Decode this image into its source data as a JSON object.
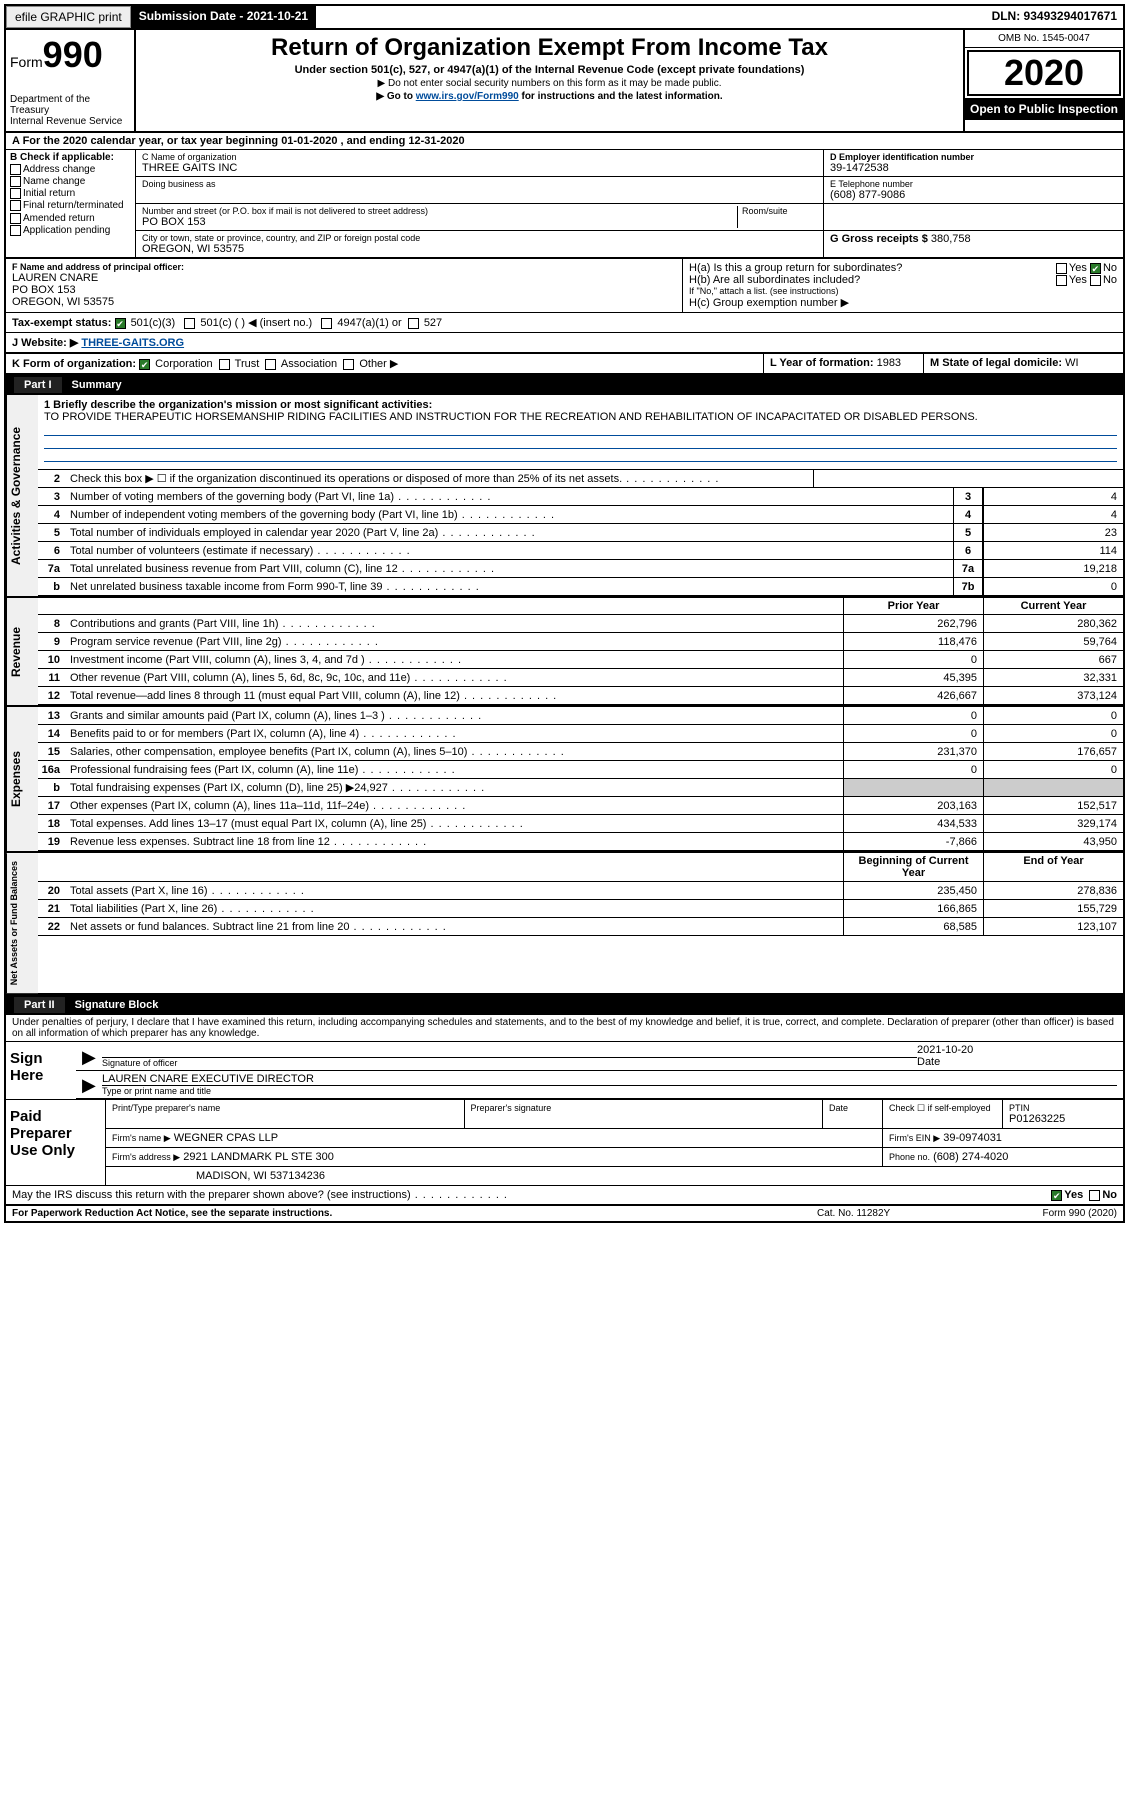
{
  "topbar": {
    "efile": "efile GRAPHIC print",
    "subdate_label": "Submission Date - 2021-10-21",
    "dln": "DLN: 93493294017671"
  },
  "header": {
    "form_word": "Form",
    "form_num": "990",
    "dept": "Department of the Treasury\nInternal Revenue Service",
    "title": "Return of Organization Exempt From Income Tax",
    "subtitle": "Under section 501(c), 527, or 4947(a)(1) of the Internal Revenue Code (except private foundations)",
    "note1": "▶ Do not enter social security numbers on this form as it may be made public.",
    "note2_pre": "▶ Go to ",
    "note2_link": "www.irs.gov/Form990",
    "note2_post": " for instructions and the latest information.",
    "omb": "OMB No. 1545-0047",
    "year": "2020",
    "inspect": "Open to Public Inspection"
  },
  "lineA": "A   For the 2020 calendar year, or tax year beginning 01-01-2020    , and ending 12-31-2020",
  "colB": {
    "label": "B Check if applicable:",
    "opts": [
      "Address change",
      "Name change",
      "Initial return",
      "Final return/terminated",
      "Amended return",
      "Application pending"
    ]
  },
  "C": {
    "name_label": "C Name of organization",
    "name": "THREE GAITS INC",
    "dba": "Doing business as",
    "addr_label": "Number and street (or P.O. box if mail is not delivered to street address)",
    "room_label": "Room/suite",
    "addr": "PO BOX 153",
    "city_label": "City or town, state or province, country, and ZIP or foreign postal code",
    "city": "OREGON, WI  53575"
  },
  "D": {
    "label": "D Employer identification number",
    "val": "39-1472538"
  },
  "E": {
    "label": "E Telephone number",
    "val": "(608) 877-9086"
  },
  "G": {
    "label": "G Gross receipts $",
    "val": "380,758"
  },
  "F": {
    "label": "F  Name and address of principal officer:",
    "name": "LAUREN CNARE",
    "addr1": "PO BOX 153",
    "addr2": "OREGON, WI  53575"
  },
  "H": {
    "a": "H(a)  Is this a group return for subordinates?",
    "b": "H(b)  Are all subordinates included?",
    "b_note": "If \"No,\" attach a list. (see instructions)",
    "c": "H(c)  Group exemption number ▶",
    "yes": "Yes",
    "no": "No"
  },
  "I": {
    "label": "Tax-exempt status:",
    "opts": [
      "501(c)(3)",
      "501(c) (  ) ◀ (insert no.)",
      "4947(a)(1) or",
      "527"
    ]
  },
  "J": {
    "label": "J    Website: ▶",
    "val": "THREE-GAITS.ORG"
  },
  "K": {
    "label": "K Form of organization:",
    "opts": [
      "Corporation",
      "Trust",
      "Association",
      "Other ▶"
    ]
  },
  "L": {
    "label": "L Year of formation:",
    "val": "1983"
  },
  "M": {
    "label": "M State of legal domicile:",
    "val": "WI"
  },
  "part1": {
    "num": "Part I",
    "title": "Summary"
  },
  "mission": {
    "label": "1  Briefly describe the organization's mission or most significant activities:",
    "text": "TO PROVIDE THERAPEUTIC HORSEMANSHIP RIDING FACILITIES AND INSTRUCTION FOR THE RECREATION AND REHABILITATION OF INCAPACITATED OR DISABLED PERSONS."
  },
  "gov_lines": [
    {
      "n": "2",
      "d": "Check this box ▶ ☐ if the organization discontinued its operations or disposed of more than 25% of its net assets.",
      "box": "",
      "v": ""
    },
    {
      "n": "3",
      "d": "Number of voting members of the governing body (Part VI, line 1a)",
      "box": "3",
      "v": "4"
    },
    {
      "n": "4",
      "d": "Number of independent voting members of the governing body (Part VI, line 1b)",
      "box": "4",
      "v": "4"
    },
    {
      "n": "5",
      "d": "Total number of individuals employed in calendar year 2020 (Part V, line 2a)",
      "box": "5",
      "v": "23"
    },
    {
      "n": "6",
      "d": "Total number of volunteers (estimate if necessary)",
      "box": "6",
      "v": "114"
    },
    {
      "n": "7a",
      "d": "Total unrelated business revenue from Part VIII, column (C), line 12",
      "box": "7a",
      "v": "19,218"
    },
    {
      "n": "b",
      "d": "Net unrelated business taxable income from Form 990-T, line 39",
      "box": "7b",
      "v": "0"
    }
  ],
  "col_headers": {
    "prior": "Prior Year",
    "current": "Current Year"
  },
  "revenue": [
    {
      "n": "8",
      "d": "Contributions and grants (Part VIII, line 1h)",
      "p": "262,796",
      "c": "280,362"
    },
    {
      "n": "9",
      "d": "Program service revenue (Part VIII, line 2g)",
      "p": "118,476",
      "c": "59,764"
    },
    {
      "n": "10",
      "d": "Investment income (Part VIII, column (A), lines 3, 4, and 7d )",
      "p": "0",
      "c": "667"
    },
    {
      "n": "11",
      "d": "Other revenue (Part VIII, column (A), lines 5, 6d, 8c, 9c, 10c, and 11e)",
      "p": "45,395",
      "c": "32,331"
    },
    {
      "n": "12",
      "d": "Total revenue—add lines 8 through 11 (must equal Part VIII, column (A), line 12)",
      "p": "426,667",
      "c": "373,124"
    }
  ],
  "expenses": [
    {
      "n": "13",
      "d": "Grants and similar amounts paid (Part IX, column (A), lines 1–3 )",
      "p": "0",
      "c": "0"
    },
    {
      "n": "14",
      "d": "Benefits paid to or for members (Part IX, column (A), line 4)",
      "p": "0",
      "c": "0"
    },
    {
      "n": "15",
      "d": "Salaries, other compensation, employee benefits (Part IX, column (A), lines 5–10)",
      "p": "231,370",
      "c": "176,657"
    },
    {
      "n": "16a",
      "d": "Professional fundraising fees (Part IX, column (A), line 11e)",
      "p": "0",
      "c": "0"
    },
    {
      "n": "b",
      "d": "Total fundraising expenses (Part IX, column (D), line 25) ▶24,927",
      "p": "",
      "c": "",
      "shaded": true
    },
    {
      "n": "17",
      "d": "Other expenses (Part IX, column (A), lines 11a–11d, 11f–24e)",
      "p": "203,163",
      "c": "152,517"
    },
    {
      "n": "18",
      "d": "Total expenses. Add lines 13–17 (must equal Part IX, column (A), line 25)",
      "p": "434,533",
      "c": "329,174"
    },
    {
      "n": "19",
      "d": "Revenue less expenses. Subtract line 18 from line 12",
      "p": "-7,866",
      "c": "43,950"
    }
  ],
  "net_headers": {
    "beg": "Beginning of Current Year",
    "end": "End of Year"
  },
  "netassets": [
    {
      "n": "20",
      "d": "Total assets (Part X, line 16)",
      "p": "235,450",
      "c": "278,836"
    },
    {
      "n": "21",
      "d": "Total liabilities (Part X, line 26)",
      "p": "166,865",
      "c": "155,729"
    },
    {
      "n": "22",
      "d": "Net assets or fund balances. Subtract line 21 from line 20",
      "p": "68,585",
      "c": "123,107"
    }
  ],
  "vtabs": {
    "gov": "Activities & Governance",
    "rev": "Revenue",
    "exp": "Expenses",
    "net": "Net Assets or Fund Balances"
  },
  "part2": {
    "num": "Part II",
    "title": "Signature Block"
  },
  "sig": {
    "decl": "Under penalties of perjury, I declare that I have examined this return, including accompanying schedules and statements, and to the best of my knowledge and belief, it is true, correct, and complete. Declaration of preparer (other than officer) is based on all information of which preparer has any knowledge.",
    "sign_here": "Sign Here",
    "sig_officer": "Signature of officer",
    "date": "Date",
    "date_val": "2021-10-20",
    "name_title": "LAUREN CNARE  EXECUTIVE DIRECTOR",
    "type_name": "Type or print name and title"
  },
  "paid": {
    "label": "Paid Preparer Use Only",
    "print_name": "Print/Type preparer's name",
    "prep_sig": "Preparer's signature",
    "date": "Date",
    "check_self": "Check ☐ if self-employed",
    "ptin_label": "PTIN",
    "ptin": "P01263225",
    "firm_name_label": "Firm's name   ▶",
    "firm_name": "WEGNER CPAS LLP",
    "firm_ein_label": "Firm's EIN ▶",
    "firm_ein": "39-0974031",
    "firm_addr_label": "Firm's address ▶",
    "firm_addr1": "2921 LANDMARK PL STE 300",
    "firm_addr2": "MADISON, WI  537134236",
    "phone_label": "Phone no.",
    "phone": "(608) 274-4020",
    "discuss": "May the IRS discuss this return with the preparer shown above? (see instructions)"
  },
  "footer": {
    "left": "For Paperwork Reduction Act Notice, see the separate instructions.",
    "mid": "Cat. No. 11282Y",
    "right": "Form 990 (2020)"
  }
}
